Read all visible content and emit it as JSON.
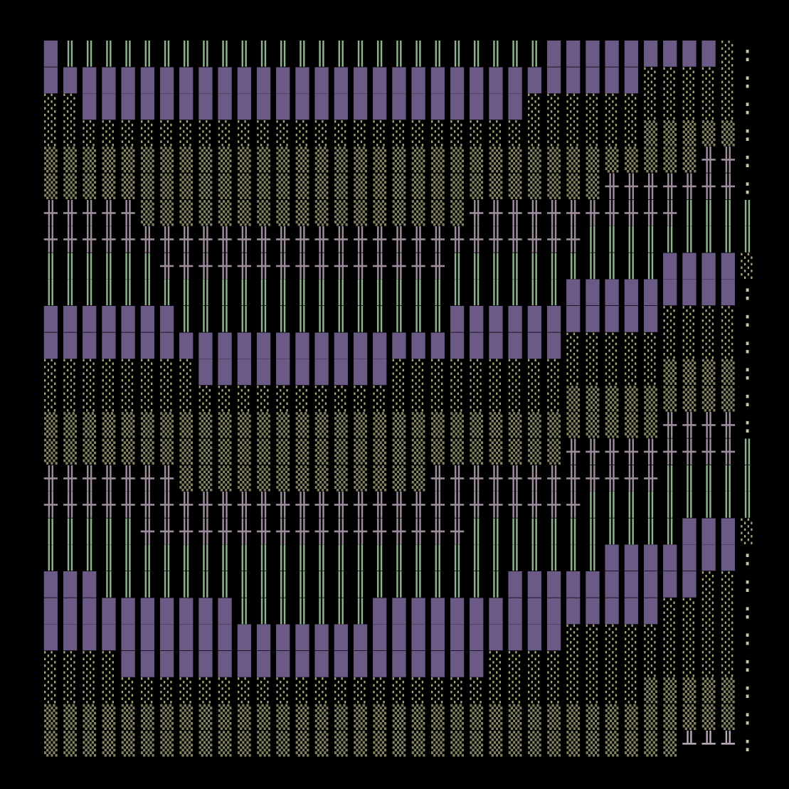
{
  "rows": [
    "█║║║║║║║║║║║║║║║║║║║║║║║║║█████████░:",
    "███████████████████████████████░░░░░:",
    "░░███████████████████████░░░░░░░░░░░:",
    "░░░░░░░░░░░░░░░░░░░░░░░░░░░░░░░▒▒▒▒▒:",
    "▒▒▒▒▒▒▒▒▒▒▒▒▒▒▒▒▒▒▒▒▒▒▒▒▒▒▒▒▒▒▒▒▒▒╫╫:",
    "▒▒▒▒▒▒▒▒▒▒▒▒▒▒▒▒▒▒▒▒▒▒▒▒▒▒▒▒▒╫╫╫╫╫╫╫:",
    "╫╫╫╫╫▒▒▒▒▒▒▒▒▒▒▒▒▒▒▒▒▒╫╫╫╫╫╫╫╫╫╫╫║║║║",
    "╫╫╫╫╫╫╫╫╫╫╫╫╫╫╫╫╫╫╫╫╫╫╫╫╫╫╫╫║║║║║║║║║",
    "║║║║║║╫╫╫╫╫╫╫╫╫╫╫╫╫╫╫║║║║║║║║║║║████░",
    "║║║║║║║║║║║║║║║║║║║║║║║║║║║█████████:",
    "███████║║║║║║║║║║║║║║███████████░░░░:",
    "███████████████████████████░░░░░░░░░:",
    "░░░░░░░░██████████░░░░░░░░░░░░░░▒▒▒▒:",
    "░░░░░░░░░░░░░░░░░░░░░░░░░░░▒▒▒▒▒▒▒▒▒:",
    "▒▒▒▒▒▒▒▒▒▒▒▒▒▒▒▒▒▒▒▒▒▒▒▒▒▒▒▒▒▒▒▒╫╫╫╫:",
    "▒▒▒▒▒▒▒▒▒▒▒▒▒▒▒▒▒▒▒▒▒▒▒▒▒▒▒╫╫╫╫╫╫╫╫╫║",
    "╫╫╫╫╫╫╫▒▒▒▒▒▒▒▒▒▒▒▒▒╫╫╫╫╫╫╫╫╫╫╫╫║║║║║",
    "╫╫╫╫╫╫╫╫╫╫╫╫╫╫╫╫╫╫╫╫╫╫╫╫╫╫╫╫║║║║║║║║║",
    "║║║║║╫╫╫╫╫╫╫╫╫╫╫╫╫╫╫╫╫║║║║║║║║║║║███░",
    "║║║║║║║║║║║║║║║║║║║║║║║║║║║║║███████:",
    "███║║║║║║║║║║║║║║║║║║║║║██████████░░:",
    "██████████║║║║║║║███████████████░░░░:",
    "███████████████████████████░░░░░░░░░:",
    "░░░░███████████████████░░░░░░░░░░░░░:",
    "░░░░░░░░░░░░░░░░░░░░░░░░░░░░░░░▒▒▒▒▒:",
    "▒▒▒▒▒▒▒▒▒▒▒▒▒▒▒▒▒▒▒▒▒▒▒▒▒▒▒▒▒▒▒▒▒▒▒▒:",
    "▒▒▒▒▒▒▒▒▒▒▒▒▒▒▒▒▒▒▒▒▒▒▒▒▒▒▒▒▒▒▒▒▒╨╨╨:"
  ]
}
